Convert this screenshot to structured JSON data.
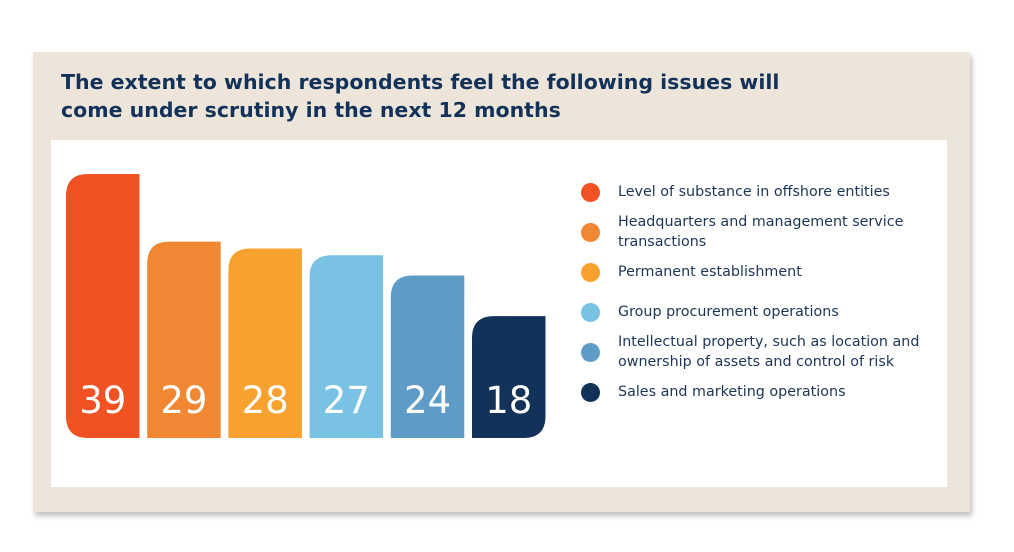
{
  "title": "The extent to which respondents feel the following issues will come under scrutiny in the next 12 months",
  "chart_data": {
    "type": "bar",
    "title": "The extent to which respondents feel the following issues will come under scrutiny in the next 12 months",
    "categories": [
      "Level of substance in offshore entities",
      "Headquarters and management service transactions",
      "Permanent establishment",
      "Group procurement operations",
      "Intellectual property, such as location and ownership of assets and control of risk",
      "Sales and marketing operations"
    ],
    "values": [
      39,
      29,
      28,
      27,
      24,
      18
    ],
    "value_labels": [
      "39",
      "29",
      "28",
      "27",
      "24",
      "18"
    ],
    "colors": [
      "#f05223",
      "#f08733",
      "#f9a12e",
      "#79c2e3",
      "#5e9cc7",
      "#13325a"
    ],
    "legend_position": "right",
    "grid": false,
    "xlabel": "",
    "ylabel": ""
  }
}
